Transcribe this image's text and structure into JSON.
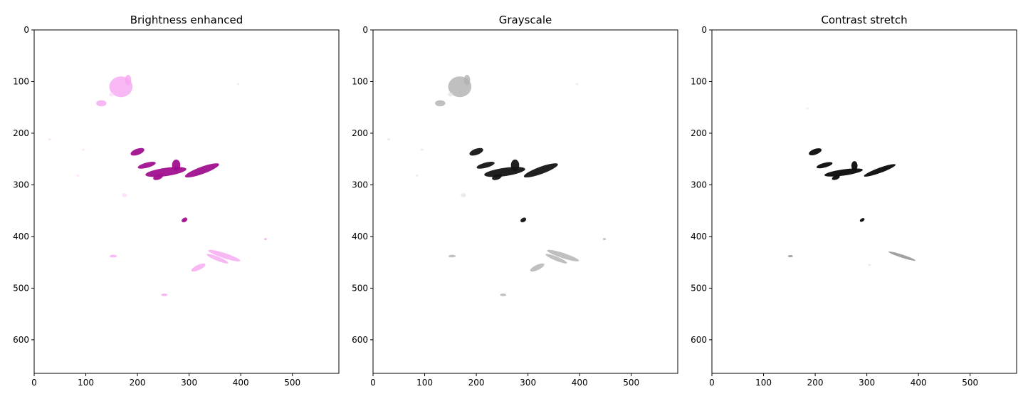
{
  "chart_data": [
    {
      "type": "image",
      "title": "Brightness enhanced",
      "xlim": [
        0,
        590
      ],
      "ylim": [
        665,
        0
      ],
      "xticks": [
        0,
        100,
        200,
        300,
        400,
        500
      ],
      "yticks": [
        0,
        100,
        200,
        300,
        400,
        500,
        600
      ],
      "colors": {
        "dark": "#a0108f",
        "light": "#f5a6f0",
        "faint": "#fbd8f8"
      },
      "blobs": [
        {
          "x": 168,
          "y": 110,
          "w": 45,
          "h": 40,
          "a": 0,
          "t": "light"
        },
        {
          "x": 182,
          "y": 97,
          "w": 12,
          "h": 20,
          "a": 0,
          "t": "light"
        },
        {
          "x": 130,
          "y": 142,
          "w": 20,
          "h": 12,
          "a": 0,
          "t": "light"
        },
        {
          "x": 150,
          "y": 125,
          "w": 10,
          "h": 8,
          "a": 0,
          "t": "faint"
        },
        {
          "x": 200,
          "y": 236,
          "w": 12,
          "h": 28,
          "a": 70,
          "t": "dark"
        },
        {
          "x": 218,
          "y": 262,
          "w": 10,
          "h": 36,
          "a": 75,
          "t": "dark"
        },
        {
          "x": 255,
          "y": 275,
          "w": 80,
          "h": 16,
          "a": -8,
          "t": "dark"
        },
        {
          "x": 275,
          "y": 262,
          "w": 16,
          "h": 22,
          "a": 0,
          "t": "dark"
        },
        {
          "x": 325,
          "y": 272,
          "w": 70,
          "h": 14,
          "a": -20,
          "t": "dark"
        },
        {
          "x": 240,
          "y": 285,
          "w": 20,
          "h": 10,
          "a": -20,
          "t": "dark"
        },
        {
          "x": 291,
          "y": 368,
          "w": 12,
          "h": 8,
          "a": -30,
          "t": "dark"
        },
        {
          "x": 368,
          "y": 437,
          "w": 65,
          "h": 10,
          "a": 18,
          "t": "light"
        },
        {
          "x": 355,
          "y": 443,
          "w": 45,
          "h": 8,
          "a": 22,
          "t": "light"
        },
        {
          "x": 318,
          "y": 460,
          "w": 30,
          "h": 10,
          "a": -25,
          "t": "light"
        },
        {
          "x": 153,
          "y": 438,
          "w": 14,
          "h": 5,
          "a": 0,
          "t": "light"
        },
        {
          "x": 252,
          "y": 513,
          "w": 12,
          "h": 5,
          "a": 0,
          "t": "light"
        },
        {
          "x": 175,
          "y": 320,
          "w": 10,
          "h": 8,
          "a": 0,
          "t": "faint"
        },
        {
          "x": 448,
          "y": 405,
          "w": 6,
          "h": 4,
          "a": 0,
          "t": "light"
        },
        {
          "x": 395,
          "y": 105,
          "w": 5,
          "h": 4,
          "a": 0,
          "t": "faint"
        },
        {
          "x": 95,
          "y": 232,
          "w": 6,
          "h": 4,
          "a": 0,
          "t": "faint"
        },
        {
          "x": 30,
          "y": 212,
          "w": 6,
          "h": 4,
          "a": 0,
          "t": "faint"
        },
        {
          "x": 85,
          "y": 282,
          "w": 5,
          "h": 4,
          "a": 0,
          "t": "faint"
        }
      ]
    },
    {
      "type": "image",
      "title": "Grayscale",
      "xlim": [
        0,
        590
      ],
      "ylim": [
        665,
        0
      ],
      "xticks": [
        0,
        100,
        200,
        300,
        400,
        500
      ],
      "yticks": [
        0,
        100,
        200,
        300,
        400,
        500,
        600
      ],
      "colors": {
        "dark": "#141414",
        "light": "#b0b0b0",
        "faint": "#e2e2e2"
      },
      "blobs": [
        {
          "x": 168,
          "y": 110,
          "w": 45,
          "h": 40,
          "a": 0,
          "t": "light"
        },
        {
          "x": 182,
          "y": 97,
          "w": 12,
          "h": 20,
          "a": 0,
          "t": "light"
        },
        {
          "x": 130,
          "y": 142,
          "w": 20,
          "h": 12,
          "a": 0,
          "t": "light"
        },
        {
          "x": 150,
          "y": 125,
          "w": 10,
          "h": 8,
          "a": 0,
          "t": "faint"
        },
        {
          "x": 200,
          "y": 236,
          "w": 12,
          "h": 28,
          "a": 70,
          "t": "dark"
        },
        {
          "x": 218,
          "y": 262,
          "w": 10,
          "h": 36,
          "a": 75,
          "t": "dark"
        },
        {
          "x": 255,
          "y": 275,
          "w": 80,
          "h": 16,
          "a": -8,
          "t": "dark"
        },
        {
          "x": 275,
          "y": 262,
          "w": 16,
          "h": 22,
          "a": 0,
          "t": "dark"
        },
        {
          "x": 325,
          "y": 272,
          "w": 70,
          "h": 14,
          "a": -20,
          "t": "dark"
        },
        {
          "x": 240,
          "y": 285,
          "w": 20,
          "h": 10,
          "a": -20,
          "t": "dark"
        },
        {
          "x": 291,
          "y": 368,
          "w": 12,
          "h": 8,
          "a": -30,
          "t": "dark"
        },
        {
          "x": 368,
          "y": 437,
          "w": 65,
          "h": 10,
          "a": 18,
          "t": "light"
        },
        {
          "x": 355,
          "y": 443,
          "w": 45,
          "h": 8,
          "a": 22,
          "t": "light"
        },
        {
          "x": 318,
          "y": 460,
          "w": 30,
          "h": 10,
          "a": -25,
          "t": "light"
        },
        {
          "x": 153,
          "y": 438,
          "w": 14,
          "h": 5,
          "a": 0,
          "t": "light"
        },
        {
          "x": 252,
          "y": 513,
          "w": 12,
          "h": 5,
          "a": 0,
          "t": "light"
        },
        {
          "x": 175,
          "y": 320,
          "w": 10,
          "h": 8,
          "a": 0,
          "t": "faint"
        },
        {
          "x": 448,
          "y": 405,
          "w": 6,
          "h": 4,
          "a": 0,
          "t": "light"
        },
        {
          "x": 395,
          "y": 105,
          "w": 5,
          "h": 4,
          "a": 0,
          "t": "faint"
        },
        {
          "x": 95,
          "y": 232,
          "w": 6,
          "h": 4,
          "a": 0,
          "t": "faint"
        },
        {
          "x": 30,
          "y": 212,
          "w": 6,
          "h": 4,
          "a": 0,
          "t": "faint"
        },
        {
          "x": 85,
          "y": 282,
          "w": 5,
          "h": 4,
          "a": 0,
          "t": "faint"
        }
      ]
    },
    {
      "type": "image",
      "title": "Contrast stretch",
      "xlim": [
        0,
        590
      ],
      "ylim": [
        665,
        0
      ],
      "xticks": [
        0,
        100,
        200,
        300,
        400,
        500
      ],
      "yticks": [
        0,
        100,
        200,
        300,
        400,
        500,
        600
      ],
      "colors": {
        "dark": "#0a0a0a",
        "light": "#8a8a8a",
        "faint": "#e6e6e6"
      },
      "blobs": [
        {
          "x": 200,
          "y": 236,
          "w": 11,
          "h": 26,
          "a": 70,
          "t": "dark"
        },
        {
          "x": 218,
          "y": 262,
          "w": 9,
          "h": 32,
          "a": 75,
          "t": "dark"
        },
        {
          "x": 255,
          "y": 276,
          "w": 75,
          "h": 12,
          "a": -8,
          "t": "dark"
        },
        {
          "x": 276,
          "y": 263,
          "w": 12,
          "h": 18,
          "a": 0,
          "t": "dark"
        },
        {
          "x": 325,
          "y": 272,
          "w": 65,
          "h": 10,
          "a": -20,
          "t": "dark"
        },
        {
          "x": 240,
          "y": 286,
          "w": 16,
          "h": 8,
          "a": -20,
          "t": "dark"
        },
        {
          "x": 291,
          "y": 368,
          "w": 10,
          "h": 6,
          "a": -30,
          "t": "dark"
        },
        {
          "x": 368,
          "y": 438,
          "w": 55,
          "h": 6,
          "a": 18,
          "t": "light"
        },
        {
          "x": 152,
          "y": 438,
          "w": 10,
          "h": 4,
          "a": 0,
          "t": "light"
        },
        {
          "x": 305,
          "y": 455,
          "w": 6,
          "h": 4,
          "a": 0,
          "t": "faint"
        },
        {
          "x": 185,
          "y": 152,
          "w": 4,
          "h": 4,
          "a": 0,
          "t": "faint"
        }
      ]
    }
  ]
}
